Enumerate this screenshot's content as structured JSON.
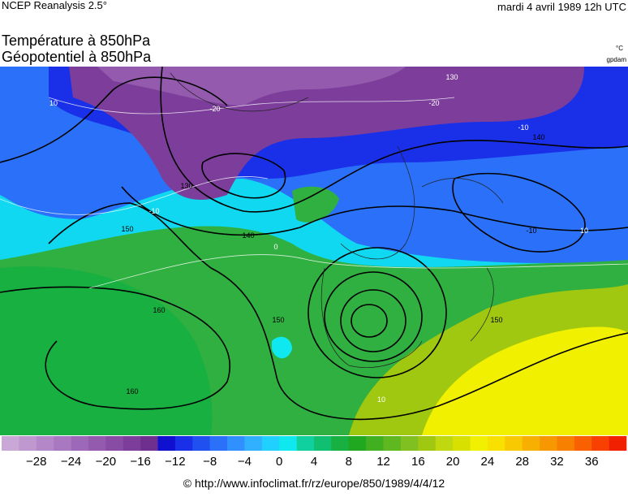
{
  "header": {
    "source": "NCEP Reanalysis 2.5°",
    "date": "mardi 4 avril 1989 12h UTC"
  },
  "titles": [
    "Température à 850hPa",
    "Géopotentiel à 850hPa"
  ],
  "units": [
    "°C",
    "gpdam"
  ],
  "map": {
    "contour_labels": [
      "10",
      "-20",
      "-20",
      "130",
      "130",
      "-10",
      "140",
      "-10",
      "140",
      "0",
      "150",
      "-10",
      "10",
      "160",
      "150",
      "160",
      "10",
      "150"
    ]
  },
  "colorbar": {
    "colors": [
      "#c9a8d8",
      "#bf98d0",
      "#b488c8",
      "#a978c0",
      "#9e68b8",
      "#935aae",
      "#884ca4",
      "#7c3e9a",
      "#6e2f8f",
      "#1010d0",
      "#1a30e8",
      "#2050f0",
      "#2a70f8",
      "#3090ff",
      "#30b0ff",
      "#20d0ff",
      "#10e8f0",
      "#10d0a0",
      "#10c070",
      "#18b040",
      "#20a820",
      "#40b020",
      "#60b820",
      "#80c020",
      "#a0c810",
      "#c0d810",
      "#d8e000",
      "#f0f000",
      "#f8e000",
      "#f8c800",
      "#f8b000",
      "#f89800",
      "#f88000",
      "#f86000",
      "#f84000",
      "#f02000"
    ],
    "labels": [
      "−28",
      "−24",
      "−20",
      "−16",
      "−12",
      "−8",
      "−4",
      "0",
      "4",
      "8",
      "12",
      "16",
      "20",
      "24",
      "28",
      "32",
      "36"
    ]
  },
  "footer": "© http://www.infoclimat.fr/rz/europe/850/1989/4/4/12"
}
